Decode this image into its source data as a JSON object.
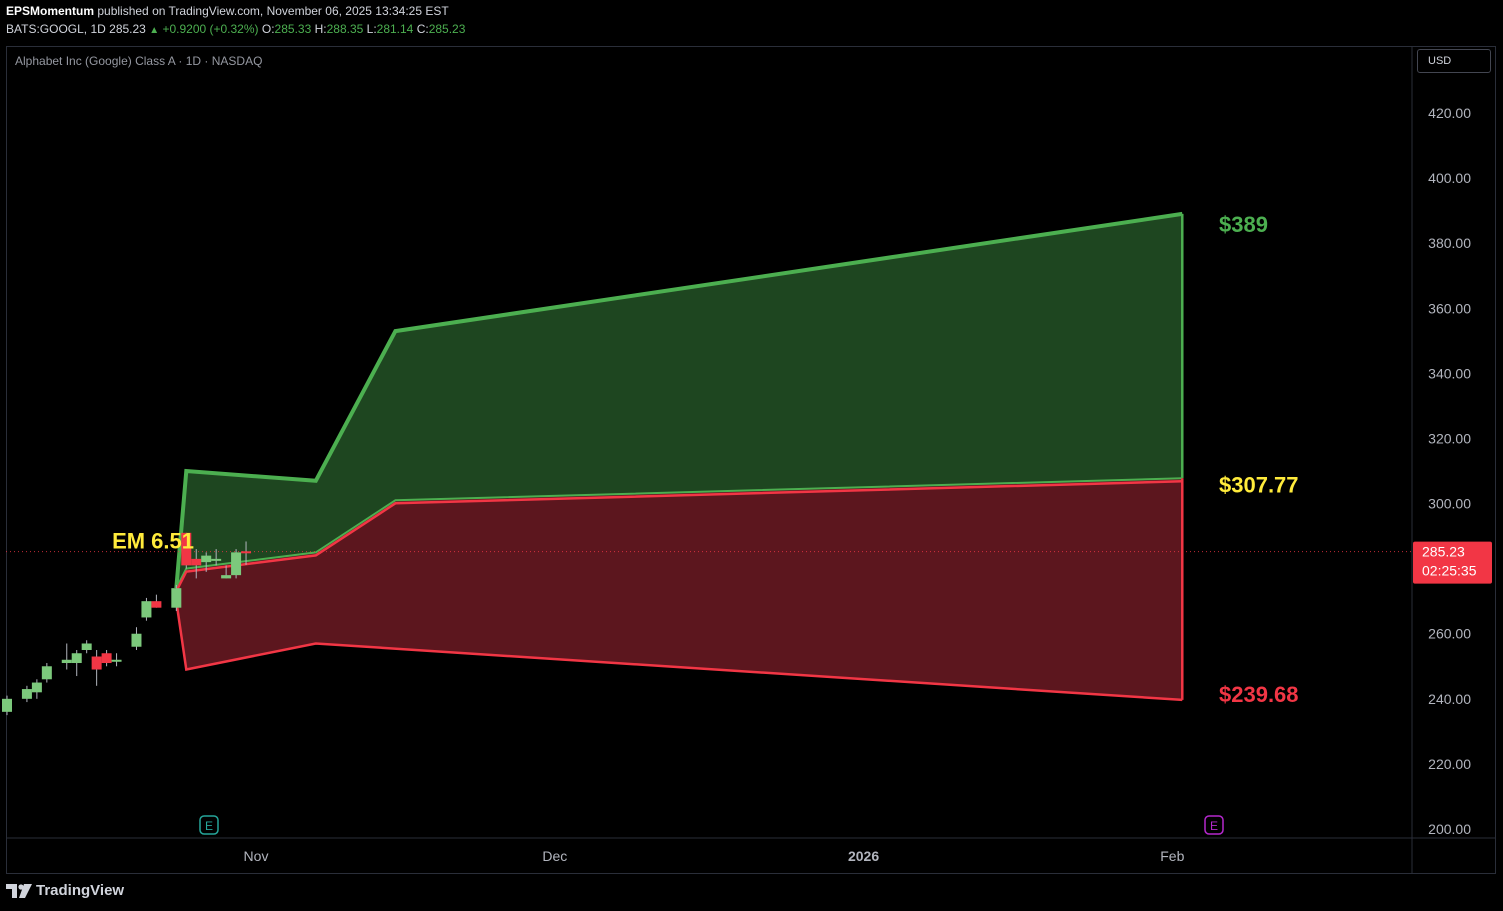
{
  "header": {
    "author": "EPSMomentum",
    "published": "published on TradingView.com, November 06, 2025 13:34:25 EST",
    "symbol_line": "BATS:GOOGL, 1D",
    "last": "285.23",
    "change": "+0.9200 (+0.32%)",
    "o_label": "O:",
    "o": "285.33",
    "h_label": "H:",
    "h": "288.35",
    "l_label": "L:",
    "l": "281.14",
    "c_label": "C:",
    "c": "285.23"
  },
  "chart_title": "Alphabet Inc (Google) Class A · 1D · NASDAQ",
  "currency": "USD",
  "price_tag": {
    "price": "285.23",
    "countdown": "02:25:35"
  },
  "labels": {
    "em": "EM 6.51",
    "upper": "$389",
    "mid": "$307.77",
    "lower": "$239.68"
  },
  "earnings_marker": "E",
  "brand": "TradingView",
  "colors": {
    "green": "#4caf50",
    "red": "#f23645",
    "yellow": "#ffeb3b",
    "green_fill": "#1e4620",
    "red_fill": "#5c161e",
    "tag_bg": "#f23645"
  },
  "chart_data": {
    "type": "candlestick",
    "y_ticks": [
      "420.00",
      "400.00",
      "380.00",
      "360.00",
      "340.00",
      "320.00",
      "300.00",
      "260.00",
      "240.00",
      "220.00",
      "200.00"
    ],
    "y_tick_values": [
      420,
      400,
      380,
      360,
      340,
      320,
      300,
      260,
      240,
      220,
      200
    ],
    "ylim": [
      200,
      440
    ],
    "x_ticks": [
      {
        "label": "Nov",
        "day": 0,
        "bold": false
      },
      {
        "label": "Dec",
        "day": 30,
        "bold": false
      },
      {
        "label": "2026",
        "day": 61,
        "bold": true
      },
      {
        "label": "Feb",
        "day": 92,
        "bold": false
      }
    ],
    "candles": [
      {
        "day": -25,
        "o": 236,
        "h": 241,
        "l": 235,
        "c": 240
      },
      {
        "day": -23,
        "o": 240,
        "h": 244,
        "l": 239,
        "c": 243
      },
      {
        "day": -22,
        "o": 242,
        "h": 246,
        "l": 240,
        "c": 245
      },
      {
        "day": -21,
        "o": 246,
        "h": 251,
        "l": 245,
        "c": 250
      },
      {
        "day": -19,
        "o": 251,
        "h": 257,
        "l": 249,
        "c": 252
      },
      {
        "day": -18,
        "o": 251,
        "h": 255,
        "l": 247,
        "c": 254
      },
      {
        "day": -17,
        "o": 255,
        "h": 258,
        "l": 254,
        "c": 257
      },
      {
        "day": -16,
        "o": 253,
        "h": 255,
        "l": 244,
        "c": 249
      },
      {
        "day": -15,
        "o": 254,
        "h": 255,
        "l": 250,
        "c": 251
      },
      {
        "day": -14,
        "o": 252,
        "h": 254,
        "l": 250,
        "c": 252
      },
      {
        "day": -12,
        "o": 256,
        "h": 262,
        "l": 255,
        "c": 260
      },
      {
        "day": -11,
        "o": 265,
        "h": 271,
        "l": 264,
        "c": 270
      },
      {
        "day": -10,
        "o": 270,
        "h": 272,
        "l": 268,
        "c": 268
      },
      {
        "day": -8,
        "o": 268,
        "h": 275,
        "l": 267,
        "c": 274
      },
      {
        "day": -7,
        "o": 291,
        "h": 291,
        "l": 280,
        "c": 281
      },
      {
        "day": -6,
        "o": 283,
        "h": 286,
        "l": 277,
        "c": 281
      },
      {
        "day": -5,
        "o": 282,
        "h": 285,
        "l": 279,
        "c": 284
      },
      {
        "day": -4,
        "o": 283,
        "h": 286,
        "l": 281,
        "c": 283
      },
      {
        "day": -3,
        "o": 277,
        "h": 281,
        "l": 277,
        "c": 278
      },
      {
        "day": -2,
        "o": 278,
        "h": 286,
        "l": 277,
        "c": 285
      },
      {
        "day": -1,
        "o": 285.33,
        "h": 288.35,
        "l": 281.14,
        "c": 285.23
      }
    ],
    "band_upper": [
      {
        "day": -8,
        "y": 274
      },
      {
        "day": -7,
        "y": 310
      },
      {
        "day": 6,
        "y": 307
      },
      {
        "day": 14,
        "y": 353
      },
      {
        "day": 93,
        "y": 389
      }
    ],
    "band_mid": [
      {
        "day": -8,
        "y": 274
      },
      {
        "day": -7,
        "y": 280
      },
      {
        "day": 6,
        "y": 285
      },
      {
        "day": 14,
        "y": 301
      },
      {
        "day": 93,
        "y": 307.77
      }
    ],
    "band_lower": [
      {
        "day": -8,
        "y": 270
      },
      {
        "day": -7,
        "y": 249
      },
      {
        "day": 6,
        "y": 257
      },
      {
        "day": 93,
        "y": 239.68
      }
    ],
    "current_price": 285.23
  }
}
